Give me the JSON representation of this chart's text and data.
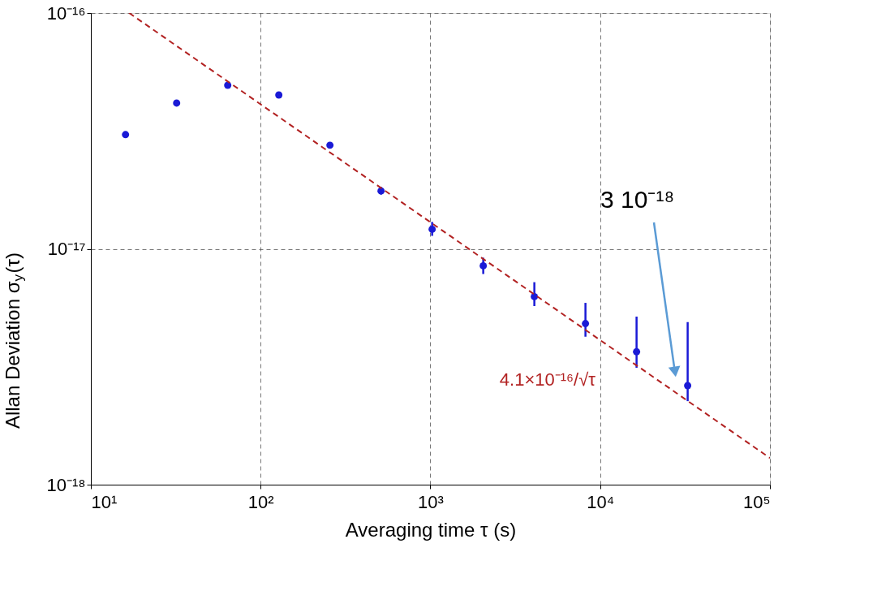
{
  "chart_data": {
    "type": "scatter",
    "xlabel": "Averaging time τ (s)",
    "ylabel": "Allan Deviation σ$_{y}$(τ)",
    "log": "xy",
    "grid": true,
    "xlim": [
      10,
      100000
    ],
    "ylim": [
      1e-18,
      1e-16
    ],
    "xticks": [
      {
        "value": 10,
        "label": "10¹"
      },
      {
        "value": 100,
        "label": "10²"
      },
      {
        "value": 1000,
        "label": "10³"
      },
      {
        "value": 10000,
        "label": "10⁴"
      },
      {
        "value": 100000,
        "label": "10⁵"
      }
    ],
    "yticks": [
      {
        "value": 1e-18,
        "label": "10⁻¹⁸"
      },
      {
        "value": 1e-17,
        "label": "10⁻¹⁷"
      },
      {
        "value": 1e-16,
        "label": "10⁻¹⁶"
      }
    ],
    "series": [
      {
        "marker": "circle",
        "color": "#1a1ad6",
        "x": [
          16,
          32,
          64,
          128,
          256,
          512,
          1024,
          2048,
          4096,
          8192,
          16384,
          32768
        ],
        "values": [
          3.05e-17,
          4.15e-17,
          4.94e-17,
          4.49e-17,
          2.75e-17,
          1.76e-17,
          1.21e-17,
          8.47e-18,
          6.27e-18,
          4.82e-18,
          3.66e-18,
          2.63e-18
        ],
        "errors": [
          null,
          null,
          null,
          null,
          null,
          [
            1.7e-17,
            1.83e-17
          ],
          [
            1.135e-17,
            1.3e-17
          ],
          [
            7.82e-18,
            9.17e-18
          ],
          [
            5.72e-18,
            7.22e-18
          ],
          [
            4.24e-18,
            5.9e-18
          ],
          [
            3.13e-18,
            5.16e-18
          ],
          [
            2.26e-18,
            4.89e-18
          ]
        ]
      },
      {
        "type": "line",
        "marker": "none",
        "color": "#b22222",
        "line_style": "dashed",
        "x": [
          16.81,
          100000
        ],
        "values": [
          1e-16,
          1.297e-18
        ]
      }
    ],
    "annotations": [
      "4.1×10⁻¹⁶/√τ",
      "3 10⁻¹⁸"
    ]
  }
}
